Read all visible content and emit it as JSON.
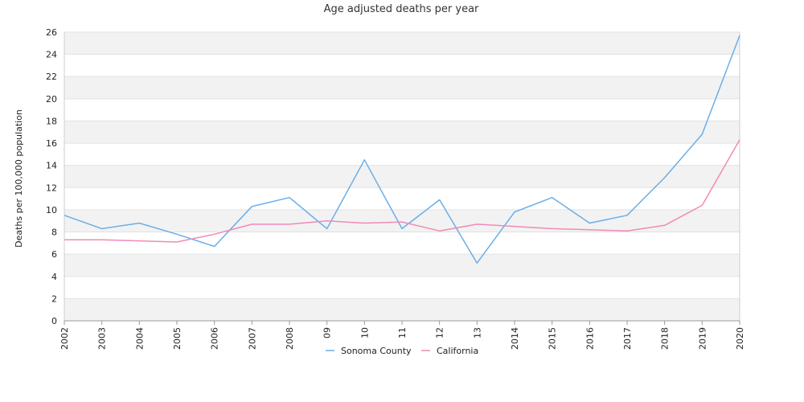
{
  "chart_data": {
    "type": "line",
    "title": "Age adjusted deaths per year",
    "xlabel": "",
    "ylabel": "Deaths per 100,000 population",
    "categories": [
      "2002",
      "2003",
      "2004",
      "2005",
      "2006",
      "2007",
      "2008",
      "09",
      "10",
      "11",
      "12",
      "13",
      "2014",
      "2015",
      "2016",
      "2017",
      "2018",
      "2019",
      "2020"
    ],
    "ylim": [
      0,
      26
    ],
    "yticks": [
      0,
      2,
      4,
      6,
      8,
      10,
      12,
      14,
      16,
      18,
      20,
      22,
      24,
      26
    ],
    "grid": "horizontal alternating bands",
    "legend": "bottom-center",
    "series": [
      {
        "name": "Sonoma County",
        "color": "#6aaee8",
        "values": [
          9.5,
          8.3,
          8.8,
          7.8,
          6.7,
          10.3,
          11.1,
          8.3,
          14.5,
          8.3,
          10.9,
          5.2,
          9.8,
          11.1,
          8.8,
          9.5,
          12.9,
          16.8,
          25.7
        ]
      },
      {
        "name": "California",
        "color": "#f08ab8",
        "values": [
          7.3,
          7.3,
          7.2,
          7.1,
          7.8,
          8.7,
          8.7,
          9.0,
          8.8,
          8.9,
          8.1,
          8.7,
          8.5,
          8.3,
          8.2,
          8.1,
          8.6,
          10.4,
          16.3
        ]
      }
    ]
  }
}
